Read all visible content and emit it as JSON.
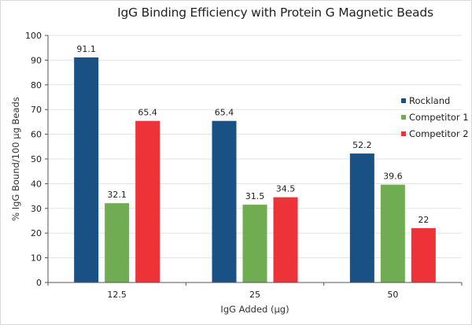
{
  "chart_data": {
    "type": "bar",
    "title": "IgG Binding Efficiency with Protein G Magnetic Beads",
    "xlabel": "IgG Added (µg)",
    "ylabel": "% IgG Bound/100 µg Beads",
    "categories": [
      "12.5",
      "25",
      "50"
    ],
    "series": [
      {
        "name": "Rockland",
        "color": "#1a5185",
        "values": [
          91.1,
          65.4,
          52.2
        ],
        "labels": [
          "91.1",
          "65.4",
          "52.2"
        ]
      },
      {
        "name": "Competitor 1",
        "color": "#6fac52",
        "values": [
          32.1,
          31.5,
          39.6
        ],
        "labels": [
          "32.1",
          "31.5",
          "39.6"
        ]
      },
      {
        "name": "Competitor 2",
        "color": "#ee3338",
        "values": [
          65.4,
          34.5,
          22
        ],
        "labels": [
          "65.4",
          "34.5",
          "22"
        ]
      }
    ],
    "ylim": [
      0,
      100
    ],
    "yticks": [
      0,
      10,
      20,
      30,
      40,
      50,
      60,
      70,
      80,
      90,
      100
    ],
    "grid": true,
    "legend_position": "right"
  }
}
